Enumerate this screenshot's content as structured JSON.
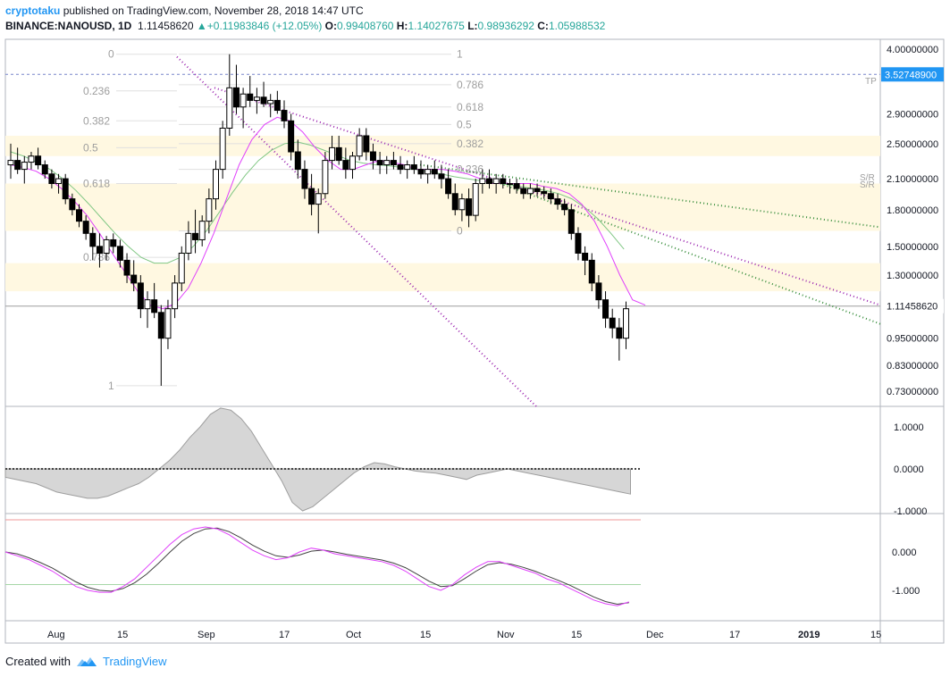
{
  "header": {
    "author": "cryptotaku",
    "published_text": "published on TradingView.com, November 28, 2018 14:47 UTC",
    "symbol": "BINANCE:NANOUSD, 1D",
    "last": "1.11458620",
    "change": "+0.11983846 (+12.05%)",
    "o_label": "O:",
    "o": "0.99408760",
    "h_label": "H:",
    "h": "1.14027675",
    "l_label": "L:",
    "l": "0.98936292",
    "c_label": "C:",
    "c": "1.05988532"
  },
  "footer": {
    "created_with": "Created with",
    "brand": "TradingView"
  },
  "colors": {
    "up": "#26a69a",
    "candle": "#000000",
    "ma_pink": "#e040fb",
    "ma_green": "#81c784",
    "fib": "#9e9e9e",
    "trend_purple": "#9c27b0",
    "trend_green": "#388e3c",
    "zone": "#fff8e1",
    "price_tag": "#2196f3"
  },
  "chart_data": {
    "type": "candlestick",
    "x_ticks": [
      "Aug",
      "15",
      "Sep",
      "17",
      "Oct",
      "15",
      "Nov",
      "15",
      "Dec",
      "17",
      "2019",
      "15"
    ],
    "price_ticks": [
      "4.00000000",
      "3.52748900",
      "2.90000000",
      "2.50000000",
      "2.10000000",
      "1.80000000",
      "1.50000000",
      "1.30000000",
      "1.11458620",
      "0.95000000",
      "0.83000000",
      "0.73000000"
    ],
    "price_tick_values": [
      4.0,
      3.527489,
      2.9,
      2.5,
      2.1,
      1.8,
      1.5,
      1.3,
      1.1145862,
      0.95,
      0.83,
      0.73
    ],
    "highlighted_price": "3.52748900",
    "last_price": "1.11458620",
    "tp_label": "TP",
    "sr_labels": [
      "S/R",
      "S/R"
    ],
    "fib_left": {
      "levels": [
        "0",
        "0.236",
        "0.382",
        "0.5",
        "0.618",
        "0.786",
        "1"
      ],
      "prices": [
        3.9,
        3.25,
        2.8,
        2.45,
        2.05,
        1.42,
        0.75
      ]
    },
    "fib_right": {
      "levels": [
        "1",
        "0.786",
        "0.618",
        "0.5",
        "0.382",
        "0.236",
        "0"
      ],
      "prices": [
        3.9,
        3.35,
        3.0,
        2.75,
        2.5,
        2.2,
        1.62
      ]
    },
    "osc1": {
      "ticks": [
        "1.0000",
        "0.0000",
        "-1.0000"
      ],
      "tick_values": [
        1.0,
        0.0,
        -1.0
      ]
    },
    "osc2": {
      "ticks": [
        "0.000",
        "-1.000"
      ],
      "tick_values": [
        0.0,
        -1.0
      ]
    },
    "candles": [
      [
        2.25,
        2.5,
        2.1,
        2.3
      ],
      [
        2.3,
        2.45,
        2.15,
        2.2
      ],
      [
        2.2,
        2.35,
        2.05,
        2.28
      ],
      [
        2.28,
        2.4,
        2.2,
        2.35
      ],
      [
        2.35,
        2.45,
        2.2,
        2.25
      ],
      [
        2.25,
        2.3,
        2.1,
        2.15
      ],
      [
        2.15,
        2.2,
        2.0,
        2.05
      ],
      [
        2.05,
        2.15,
        1.95,
        2.1
      ],
      [
        2.1,
        2.15,
        1.85,
        1.9
      ],
      [
        1.9,
        1.95,
        1.75,
        1.8
      ],
      [
        1.8,
        1.85,
        1.65,
        1.7
      ],
      [
        1.7,
        1.75,
        1.55,
        1.6
      ],
      [
        1.6,
        1.65,
        1.4,
        1.5
      ],
      [
        1.5,
        1.6,
        1.35,
        1.45
      ],
      [
        1.45,
        1.58,
        1.4,
        1.55
      ],
      [
        1.55,
        1.6,
        1.45,
        1.5
      ],
      [
        1.5,
        1.55,
        1.35,
        1.4
      ],
      [
        1.4,
        1.45,
        1.25,
        1.3
      ],
      [
        1.3,
        1.4,
        1.2,
        1.25
      ],
      [
        1.25,
        1.3,
        1.05,
        1.1
      ],
      [
        1.1,
        1.2,
        1.0,
        1.15
      ],
      [
        1.15,
        1.25,
        1.05,
        1.08
      ],
      [
        1.08,
        1.12,
        0.75,
        0.95
      ],
      [
        0.95,
        1.15,
        0.9,
        1.1
      ],
      [
        1.1,
        1.3,
        1.05,
        1.25
      ],
      [
        1.25,
        1.5,
        1.2,
        1.45
      ],
      [
        1.45,
        1.7,
        1.4,
        1.6
      ],
      [
        1.6,
        1.8,
        1.45,
        1.55
      ],
      [
        1.55,
        1.75,
        1.5,
        1.7
      ],
      [
        1.7,
        2.0,
        1.6,
        1.9
      ],
      [
        1.9,
        2.3,
        1.8,
        2.2
      ],
      [
        2.2,
        2.8,
        2.1,
        2.7
      ],
      [
        2.7,
        3.9,
        2.6,
        3.3
      ],
      [
        3.3,
        3.7,
        2.9,
        3.0
      ],
      [
        3.0,
        3.3,
        2.7,
        3.2
      ],
      [
        3.2,
        3.5,
        3.0,
        3.1
      ],
      [
        3.1,
        3.3,
        2.9,
        3.15
      ],
      [
        3.15,
        3.4,
        3.0,
        3.05
      ],
      [
        3.05,
        3.2,
        2.85,
        3.1
      ],
      [
        3.1,
        3.25,
        2.9,
        2.95
      ],
      [
        2.95,
        3.1,
        2.7,
        2.8
      ],
      [
        2.8,
        2.9,
        2.3,
        2.4
      ],
      [
        2.4,
        2.55,
        2.1,
        2.2
      ],
      [
        2.2,
        2.3,
        1.9,
        2.0
      ],
      [
        2.0,
        2.15,
        1.75,
        1.85
      ],
      [
        1.85,
        2.0,
        1.6,
        1.95
      ],
      [
        1.95,
        2.4,
        1.9,
        2.3
      ],
      [
        2.3,
        2.6,
        2.2,
        2.45
      ],
      [
        2.45,
        2.6,
        2.25,
        2.3
      ],
      [
        2.3,
        2.45,
        2.1,
        2.2
      ],
      [
        2.2,
        2.4,
        2.1,
        2.35
      ],
      [
        2.35,
        2.7,
        2.3,
        2.6
      ],
      [
        2.6,
        2.7,
        2.3,
        2.4
      ],
      [
        2.4,
        2.5,
        2.2,
        2.3
      ],
      [
        2.3,
        2.4,
        2.15,
        2.25
      ],
      [
        2.25,
        2.35,
        2.15,
        2.3
      ],
      [
        2.3,
        2.4,
        2.2,
        2.25
      ],
      [
        2.25,
        2.35,
        2.15,
        2.2
      ],
      [
        2.2,
        2.3,
        2.1,
        2.25
      ],
      [
        2.25,
        2.35,
        2.15,
        2.2
      ],
      [
        2.2,
        2.3,
        2.1,
        2.15
      ],
      [
        2.15,
        2.25,
        2.05,
        2.2
      ],
      [
        2.2,
        2.3,
        2.1,
        2.15
      ],
      [
        2.15,
        2.25,
        2.0,
        2.1
      ],
      [
        2.1,
        2.2,
        1.9,
        1.95
      ],
      [
        1.95,
        2.05,
        1.75,
        1.8
      ],
      [
        1.8,
        1.95,
        1.7,
        1.9
      ],
      [
        1.9,
        2.0,
        1.65,
        1.75
      ],
      [
        1.75,
        2.1,
        1.7,
        2.05
      ],
      [
        2.05,
        2.2,
        1.95,
        2.1
      ],
      [
        2.1,
        2.2,
        2.0,
        2.05
      ],
      [
        2.05,
        2.15,
        1.95,
        2.1
      ],
      [
        2.1,
        2.15,
        2.0,
        2.05
      ],
      [
        2.05,
        2.1,
        1.95,
        2.05
      ],
      [
        2.05,
        2.1,
        1.95,
        2.0
      ],
      [
        2.0,
        2.05,
        1.9,
        1.95
      ],
      [
        1.95,
        2.05,
        1.9,
        2.0
      ],
      [
        2.0,
        2.05,
        1.92,
        1.97
      ],
      [
        1.97,
        2.02,
        1.9,
        1.95
      ],
      [
        1.95,
        2.0,
        1.85,
        1.9
      ],
      [
        1.9,
        1.95,
        1.8,
        1.85
      ],
      [
        1.85,
        1.9,
        1.75,
        1.8
      ],
      [
        1.8,
        1.85,
        1.55,
        1.6
      ],
      [
        1.6,
        1.65,
        1.4,
        1.45
      ],
      [
        1.45,
        1.5,
        1.3,
        1.4
      ],
      [
        1.4,
        1.45,
        1.2,
        1.25
      ],
      [
        1.25,
        1.3,
        1.1,
        1.15
      ],
      [
        1.15,
        1.2,
        1.0,
        1.05
      ],
      [
        1.05,
        1.1,
        0.95,
        1.0
      ],
      [
        1.0,
        1.05,
        0.85,
        0.95
      ],
      [
        0.95,
        1.14,
        0.9,
        1.1
      ]
    ],
    "ma_pink": [
      2.25,
      2.22,
      2.18,
      2.1,
      2.0,
      1.88,
      1.75,
      1.6,
      1.45,
      1.32,
      1.2,
      1.12,
      1.1,
      1.13,
      1.22,
      1.38,
      1.6,
      1.9,
      2.25,
      2.55,
      2.75,
      2.85,
      2.8,
      2.65,
      2.45,
      2.3,
      2.2,
      2.2,
      2.25,
      2.3,
      2.28,
      2.25,
      2.2,
      2.2,
      2.2,
      2.18,
      2.15,
      2.1,
      2.05,
      2.05,
      2.05,
      2.05,
      2.02,
      2.0,
      1.95,
      1.85,
      1.7,
      1.5,
      1.3,
      1.15,
      1.12
    ],
    "ma_green": [
      2.4,
      2.35,
      2.28,
      2.2,
      2.1,
      1.98,
      1.85,
      1.72,
      1.6,
      1.5,
      1.42,
      1.38,
      1.38,
      1.42,
      1.5,
      1.62,
      1.78,
      1.96,
      2.14,
      2.3,
      2.42,
      2.5,
      2.52,
      2.48,
      2.42,
      2.36,
      2.3,
      2.27,
      2.25,
      2.24,
      2.22,
      2.2,
      2.18,
      2.15,
      2.12,
      2.1,
      2.08,
      2.06,
      2.04,
      2.02,
      2.0,
      1.98,
      1.95,
      1.9,
      1.82,
      1.72,
      1.6,
      1.48
    ],
    "osc1_values": [
      -0.2,
      -0.25,
      -0.3,
      -0.35,
      -0.45,
      -0.55,
      -0.6,
      -0.65,
      -0.7,
      -0.7,
      -0.65,
      -0.55,
      -0.45,
      -0.35,
      -0.2,
      0.0,
      0.2,
      0.45,
      0.75,
      1.0,
      1.3,
      1.45,
      1.4,
      1.2,
      0.9,
      0.5,
      0.1,
      -0.3,
      -0.8,
      -1.0,
      -0.9,
      -0.7,
      -0.5,
      -0.3,
      -0.1,
      0.05,
      0.15,
      0.12,
      0.05,
      0.0,
      -0.05,
      -0.08,
      -0.1,
      -0.15,
      -0.2,
      -0.25,
      -0.15,
      -0.1,
      -0.05,
      0.0,
      -0.05,
      -0.1,
      -0.15,
      -0.2,
      -0.25,
      -0.3,
      -0.35,
      -0.4,
      -0.45,
      -0.5,
      -0.55,
      -0.6
    ],
    "osc2_macd": [
      0.0,
      -0.1,
      -0.2,
      -0.35,
      -0.5,
      -0.7,
      -0.9,
      -1.0,
      -1.05,
      -1.05,
      -0.9,
      -0.7,
      -0.4,
      -0.1,
      0.2,
      0.45,
      0.6,
      0.65,
      0.6,
      0.45,
      0.25,
      0.05,
      -0.1,
      -0.2,
      -0.15,
      0.0,
      0.1,
      0.05,
      -0.05,
      -0.1,
      -0.15,
      -0.2,
      -0.25,
      -0.35,
      -0.5,
      -0.7,
      -0.9,
      -1.0,
      -0.85,
      -0.6,
      -0.4,
      -0.25,
      -0.25,
      -0.35,
      -0.45,
      -0.55,
      -0.7,
      -0.8,
      -0.95,
      -1.1,
      -1.25,
      -1.35,
      -1.4,
      -1.3
    ],
    "osc2_signal": [
      0.0,
      -0.05,
      -0.15,
      -0.28,
      -0.42,
      -0.6,
      -0.78,
      -0.92,
      -1.0,
      -1.02,
      -0.95,
      -0.8,
      -0.58,
      -0.3,
      0.0,
      0.28,
      0.48,
      0.6,
      0.62,
      0.53,
      0.37,
      0.18,
      0.02,
      -0.1,
      -0.14,
      -0.08,
      0.02,
      0.05,
      0.0,
      -0.06,
      -0.11,
      -0.16,
      -0.21,
      -0.29,
      -0.41,
      -0.58,
      -0.76,
      -0.9,
      -0.88,
      -0.7,
      -0.5,
      -0.33,
      -0.28,
      -0.32,
      -0.4,
      -0.5,
      -0.62,
      -0.74,
      -0.87,
      -1.02,
      -1.17,
      -1.29,
      -1.36,
      -1.32
    ]
  }
}
